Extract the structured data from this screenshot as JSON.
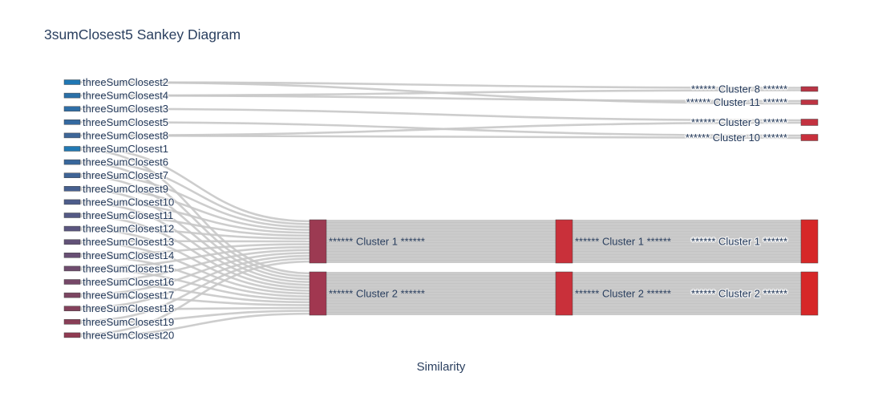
{
  "title": "3sumClosest5 Sankey Diagram",
  "xaxis_label": "Similarity",
  "colors": {
    "link": "#c8c8c8",
    "column1": "#d62728",
    "column2": "#cf3030"
  },
  "chart_data": {
    "type": "sankey",
    "title": "3sumClosest5 Sankey Diagram",
    "xlabel": "Similarity",
    "sources": [
      {
        "label": "threeSumClosest2",
        "color": "#1f77b4"
      },
      {
        "label": "threeSumClosest4",
        "color": "#2a70a8"
      },
      {
        "label": "threeSumClosest3",
        "color": "#2f6ea6"
      },
      {
        "label": "threeSumClosest5",
        "color": "#3469a0"
      },
      {
        "label": "threeSumClosest8",
        "color": "#3e6698"
      },
      {
        "label": "threeSumClosest1",
        "color": "#2279b4"
      },
      {
        "label": "threeSumClosest6",
        "color": "#38679c"
      },
      {
        "label": "threeSumClosest7",
        "color": "#3f6496"
      },
      {
        "label": "threeSumClosest9",
        "color": "#476090"
      },
      {
        "label": "threeSumClosest10",
        "color": "#4d5d8b"
      },
      {
        "label": "threeSumClosest11",
        "color": "#545985"
      },
      {
        "label": "threeSumClosest12",
        "color": "#5b5680"
      },
      {
        "label": "threeSumClosest13",
        "color": "#625278"
      },
      {
        "label": "threeSumClosest14",
        "color": "#684f74"
      },
      {
        "label": "threeSumClosest15",
        "color": "#6f4c6e"
      },
      {
        "label": "threeSumClosest16",
        "color": "#764868"
      },
      {
        "label": "threeSumClosest17",
        "color": "#7c4562"
      },
      {
        "label": "threeSumClosest18",
        "color": "#83415c"
      },
      {
        "label": "threeSumClosest19",
        "color": "#893e57"
      },
      {
        "label": "threeSumClosest20",
        "color": "#903a52"
      }
    ],
    "middle_nodes": [
      {
        "label": "****** Cluster 1 ******",
        "color": "#9c3a52"
      },
      {
        "label": "****** Cluster 2 ******",
        "color": "#a13750"
      }
    ],
    "column1_nodes": [
      {
        "label": "****** Cluster 1 ******",
        "color": "#c9303a"
      },
      {
        "label": "****** Cluster 2 ******",
        "color": "#c9303a"
      }
    ],
    "right_nodes": [
      {
        "label": "****** Cluster 8 ******",
        "color": "#b83545"
      },
      {
        "label": "****** Cluster 11 ******",
        "color": "#bd3443"
      },
      {
        "label": "****** Cluster 9 ******",
        "color": "#c33240"
      },
      {
        "label": "****** Cluster 10 ******",
        "color": "#c8303c"
      },
      {
        "label": "****** Cluster 1 ******",
        "color": "#d62728"
      },
      {
        "label": "****** Cluster 2 ******",
        "color": "#d62728"
      }
    ],
    "direct_links": [
      {
        "source": "threeSumClosest2",
        "target": "****** Cluster 8 ******"
      },
      {
        "source": "threeSumClosest4",
        "target": "****** Cluster 11 ******"
      },
      {
        "source": "threeSumClosest3",
        "target": "****** Cluster 9 ******"
      },
      {
        "source": "threeSumClosest5",
        "target": "****** Cluster 10 ******"
      },
      {
        "source": "threeSumClosest8",
        "target": "****** Cluster 9 ******"
      },
      {
        "source": "threeSumClosest2",
        "target": "****** Cluster 11 ******"
      },
      {
        "source": "threeSumClosest4",
        "target": "****** Cluster 8 ******"
      },
      {
        "source": "threeSumClosest8",
        "target": "****** Cluster 10 ******"
      }
    ],
    "cluster_members": {
      "****** Cluster 1 ******": [
        "threeSumClosest1",
        "threeSumClosest6",
        "threeSumClosest7",
        "threeSumClosest9",
        "threeSumClosest10",
        "threeSumClosest11",
        "threeSumClosest12",
        "threeSumClosest13",
        "threeSumClosest14",
        "threeSumClosest15",
        "threeSumClosest16",
        "threeSumClosest17",
        "threeSumClosest18",
        "threeSumClosest19",
        "threeSumClosest20"
      ],
      "****** Cluster 2 ******": [
        "threeSumClosest1",
        "threeSumClosest6",
        "threeSumClosest7",
        "threeSumClosest9",
        "threeSumClosest10",
        "threeSumClosest11",
        "threeSumClosest12",
        "threeSumClosest13",
        "threeSumClosest14",
        "threeSumClosest15",
        "threeSumClosest16",
        "threeSumClosest17",
        "threeSumClosest18",
        "threeSumClosest19",
        "threeSumClosest20"
      ]
    }
  }
}
